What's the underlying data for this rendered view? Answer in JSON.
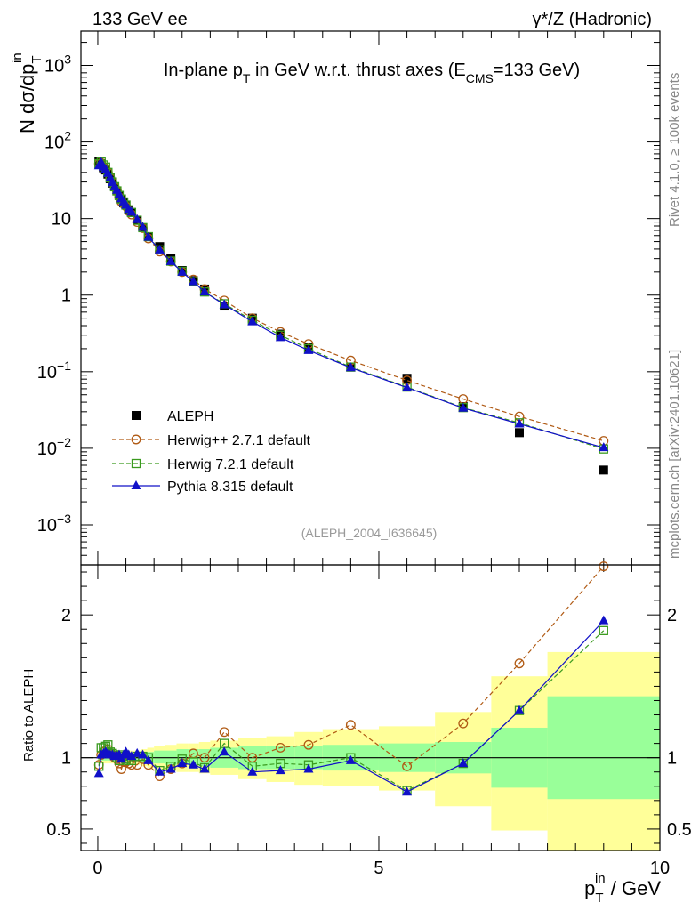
{
  "header": {
    "left_label": "133 GeV ee",
    "right_label": "γ*/Z (Hadronic)"
  },
  "side": {
    "rivet_label": "Rivet 4.1.0, ≥ 100k events",
    "mcplots_label": "mcplots.cern.ch [arXiv:2401.10621]"
  },
  "chart_data": [
    {
      "type": "line",
      "yscale": "log",
      "title": "In-plane p_T in GeV w.r.t. thrust axes (E_CMS=133 GeV)",
      "title_parts": {
        "a": "In-plane p",
        "sub1": "T",
        "b": " in GeV w.r.t. thrust axes (E",
        "sub2": "CMS",
        "c": "=133 GeV)"
      },
      "ylabel": {
        "main": "N  dσ/dp",
        "sub": "T",
        "sup": "in"
      },
      "xlim": [
        -0.3,
        10
      ],
      "ylim": [
        0.0003,
        2800
      ],
      "y_ticks": [
        {
          "v": 0.001,
          "base": "10",
          "exp": "−3"
        },
        {
          "v": 0.01,
          "base": "10",
          "exp": "−2"
        },
        {
          "v": 0.1,
          "base": "10",
          "exp": "−1"
        },
        {
          "v": 1,
          "label": "1"
        },
        {
          "v": 10,
          "label": "10"
        },
        {
          "v": 100,
          "base": "10",
          "exp": "2"
        },
        {
          "v": 1000,
          "base": "10",
          "exp": "3"
        }
      ],
      "watermark": "(ALEPH_2004_I636645)",
      "legend_position": "bottom-left",
      "series": [
        {
          "name": "ALEPH",
          "key": "aleph",
          "color": "#000000",
          "marker": "square",
          "x": [
            0.02,
            0.06,
            0.1,
            0.14,
            0.18,
            0.22,
            0.26,
            0.3,
            0.34,
            0.38,
            0.42,
            0.46,
            0.5,
            0.55,
            0.6,
            0.7,
            0.8,
            0.9,
            1.1,
            1.3,
            1.5,
            1.7,
            1.9,
            2.25,
            2.75,
            3.25,
            3.75,
            4.5,
            5.5,
            6.5,
            7.5,
            9.0
          ],
          "y": [
            55,
            52,
            46,
            43,
            38,
            33,
            29,
            26,
            23,
            20,
            18,
            16,
            15,
            13,
            12,
            9.5,
            7.6,
            5.8,
            4.3,
            3.0,
            2.1,
            1.55,
            1.2,
            0.72,
            0.5,
            0.31,
            0.21,
            0.115,
            0.082,
            0.035,
            0.016,
            0.0052
          ]
        },
        {
          "name": "Herwig++ 2.7.1 default",
          "key": "herwigpp",
          "color": "#b05a14",
          "marker": "circle",
          "x": [
            0.02,
            0.06,
            0.1,
            0.14,
            0.18,
            0.22,
            0.26,
            0.3,
            0.34,
            0.38,
            0.42,
            0.46,
            0.5,
            0.55,
            0.6,
            0.7,
            0.8,
            0.9,
            1.1,
            1.3,
            1.5,
            1.7,
            1.9,
            2.25,
            2.75,
            3.25,
            3.75,
            4.5,
            5.5,
            6.5,
            7.5,
            9.0
          ],
          "y": [
            52,
            53,
            48,
            45,
            40,
            34,
            30,
            26,
            23,
            19,
            16.5,
            15.5,
            14.5,
            12.5,
            11.3,
            9.0,
            7.5,
            5.5,
            3.7,
            2.75,
            2.0,
            1.6,
            1.2,
            0.85,
            0.5,
            0.33,
            0.23,
            0.14,
            0.077,
            0.044,
            0.026,
            0.0125
          ]
        },
        {
          "name": "Herwig 7.2.1 default",
          "key": "herwig7",
          "color": "#3a9a1e",
          "marker": "open-square",
          "x": [
            0.02,
            0.06,
            0.1,
            0.14,
            0.18,
            0.22,
            0.26,
            0.3,
            0.34,
            0.38,
            0.42,
            0.46,
            0.5,
            0.55,
            0.6,
            0.7,
            0.8,
            0.9,
            1.1,
            1.3,
            1.5,
            1.7,
            1.9,
            2.25,
            2.75,
            3.25,
            3.75,
            4.5,
            5.5,
            6.5,
            7.5,
            9.0
          ],
          "y": [
            52,
            55,
            50,
            47,
            40,
            34,
            30,
            26,
            23,
            20,
            18,
            16.5,
            15,
            13,
            12,
            9.5,
            7.6,
            5.8,
            3.9,
            2.78,
            2.05,
            1.5,
            1.1,
            0.77,
            0.47,
            0.3,
            0.2,
            0.115,
            0.063,
            0.034,
            0.0215,
            0.0098
          ]
        },
        {
          "name": "Pythia 8.315 default",
          "key": "pythia",
          "color": "#1010c8",
          "marker": "triangle",
          "x": [
            0.02,
            0.06,
            0.1,
            0.14,
            0.18,
            0.22,
            0.26,
            0.3,
            0.34,
            0.38,
            0.42,
            0.46,
            0.5,
            0.55,
            0.6,
            0.7,
            0.8,
            0.9,
            1.1,
            1.3,
            1.5,
            1.7,
            1.9,
            2.25,
            2.75,
            3.25,
            3.75,
            4.5,
            5.5,
            6.5,
            7.5,
            9.0
          ],
          "y": [
            49,
            54,
            47,
            44,
            39,
            34,
            29.5,
            26,
            23.5,
            20.5,
            18.2,
            16.5,
            15,
            13.2,
            12.2,
            9.7,
            7.7,
            5.7,
            3.9,
            2.75,
            2.0,
            1.5,
            1.1,
            0.75,
            0.45,
            0.28,
            0.19,
            0.113,
            0.062,
            0.0335,
            0.0208,
            0.0102
          ]
        }
      ]
    },
    {
      "type": "line",
      "ylabel": "Ratio to ALEPH",
      "xlabel": {
        "main": "p",
        "sub": "T",
        "sup": "in",
        "unit": " / GeV"
      },
      "xlim": [
        -0.3,
        10
      ],
      "ylim": [
        0.35,
        2.35
      ],
      "x_ticks": [
        {
          "v": 0,
          "label": "0"
        },
        {
          "v": 5,
          "label": "5"
        },
        {
          "v": 10,
          "label": "10"
        }
      ],
      "y_ticks": [
        {
          "v": 0.5,
          "label": "0.5"
        },
        {
          "v": 1,
          "label": "1"
        },
        {
          "v": 2,
          "label": "2"
        }
      ],
      "reference_line": 1,
      "band_colors": {
        "outer": "#ffff99",
        "inner": "#99ff99"
      },
      "bands": [
        {
          "x0": 0.0,
          "x1": 0.04,
          "inner": [
            0.98,
            1.02
          ],
          "outer": [
            0.96,
            1.04
          ]
        },
        {
          "x0": 0.04,
          "x1": 0.08,
          "inner": [
            0.98,
            1.02
          ],
          "outer": [
            0.96,
            1.04
          ]
        },
        {
          "x0": 0.08,
          "x1": 0.12,
          "inner": [
            0.98,
            1.02
          ],
          "outer": [
            0.96,
            1.04
          ]
        },
        {
          "x0": 0.12,
          "x1": 0.16,
          "inner": [
            0.98,
            1.02
          ],
          "outer": [
            0.96,
            1.04
          ]
        },
        {
          "x0": 0.16,
          "x1": 0.2,
          "inner": [
            0.98,
            1.02
          ],
          "outer": [
            0.96,
            1.04
          ]
        },
        {
          "x0": 0.2,
          "x1": 0.24,
          "inner": [
            0.98,
            1.02
          ],
          "outer": [
            0.96,
            1.04
          ]
        },
        {
          "x0": 0.24,
          "x1": 0.28,
          "inner": [
            0.98,
            1.02
          ],
          "outer": [
            0.96,
            1.04
          ]
        },
        {
          "x0": 0.28,
          "x1": 0.32,
          "inner": [
            0.98,
            1.02
          ],
          "outer": [
            0.96,
            1.04
          ]
        },
        {
          "x0": 0.32,
          "x1": 0.36,
          "inner": [
            0.98,
            1.02
          ],
          "outer": [
            0.96,
            1.04
          ]
        },
        {
          "x0": 0.36,
          "x1": 0.4,
          "inner": [
            0.98,
            1.02
          ],
          "outer": [
            0.96,
            1.04
          ]
        },
        {
          "x0": 0.4,
          "x1": 0.44,
          "inner": [
            0.98,
            1.02
          ],
          "outer": [
            0.96,
            1.04
          ]
        },
        {
          "x0": 0.44,
          "x1": 0.48,
          "inner": [
            0.98,
            1.02
          ],
          "outer": [
            0.96,
            1.04
          ]
        },
        {
          "x0": 0.48,
          "x1": 0.52,
          "inner": [
            0.98,
            1.02
          ],
          "outer": [
            0.96,
            1.04
          ]
        },
        {
          "x0": 0.52,
          "x1": 0.58,
          "inner": [
            0.97,
            1.03
          ],
          "outer": [
            0.95,
            1.05
          ]
        },
        {
          "x0": 0.58,
          "x1": 0.64,
          "inner": [
            0.97,
            1.03
          ],
          "outer": [
            0.95,
            1.05
          ]
        },
        {
          "x0": 0.64,
          "x1": 0.76,
          "inner": [
            0.97,
            1.03
          ],
          "outer": [
            0.95,
            1.05
          ]
        },
        {
          "x0": 0.76,
          "x1": 0.88,
          "inner": [
            0.96,
            1.04
          ],
          "outer": [
            0.94,
            1.06
          ]
        },
        {
          "x0": 0.88,
          "x1": 1.0,
          "inner": [
            0.96,
            1.04
          ],
          "outer": [
            0.93,
            1.07
          ]
        },
        {
          "x0": 1.0,
          "x1": 1.2,
          "inner": [
            0.96,
            1.05
          ],
          "outer": [
            0.92,
            1.08
          ]
        },
        {
          "x0": 1.2,
          "x1": 1.4,
          "inner": [
            0.95,
            1.05
          ],
          "outer": [
            0.91,
            1.09
          ]
        },
        {
          "x0": 1.4,
          "x1": 1.6,
          "inner": [
            0.95,
            1.06
          ],
          "outer": [
            0.9,
            1.1
          ]
        },
        {
          "x0": 1.6,
          "x1": 1.8,
          "inner": [
            0.95,
            1.06
          ],
          "outer": [
            0.9,
            1.1
          ]
        },
        {
          "x0": 1.8,
          "x1": 2.0,
          "inner": [
            0.94,
            1.06
          ],
          "outer": [
            0.89,
            1.11
          ]
        },
        {
          "x0": 2.0,
          "x1": 2.5,
          "inner": [
            0.93,
            1.07
          ],
          "outer": [
            0.88,
            1.12
          ]
        },
        {
          "x0": 2.5,
          "x1": 3.0,
          "inner": [
            0.92,
            1.08
          ],
          "outer": [
            0.85,
            1.14
          ]
        },
        {
          "x0": 3.0,
          "x1": 3.5,
          "inner": [
            0.92,
            1.08
          ],
          "outer": [
            0.83,
            1.15
          ]
        },
        {
          "x0": 3.5,
          "x1": 4.0,
          "inner": [
            0.92,
            1.08
          ],
          "outer": [
            0.81,
            1.18
          ]
        },
        {
          "x0": 4.0,
          "x1": 5.0,
          "inner": [
            0.91,
            1.09
          ],
          "outer": [
            0.8,
            1.2
          ]
        },
        {
          "x0": 5.0,
          "x1": 6.0,
          "inner": [
            0.9,
            1.1
          ],
          "outer": [
            0.77,
            1.22
          ]
        },
        {
          "x0": 6.0,
          "x1": 7.0,
          "inner": [
            0.89,
            1.11
          ],
          "outer": [
            0.66,
            1.32
          ]
        },
        {
          "x0": 7.0,
          "x1": 8.0,
          "inner": [
            0.79,
            1.21
          ],
          "outer": [
            0.49,
            1.57
          ]
        },
        {
          "x0": 8.0,
          "x1": 10.0,
          "inner": [
            0.71,
            1.43
          ],
          "outer": [
            0.35,
            1.74
          ]
        }
      ],
      "series": [
        {
          "name": "Herwig++ 2.7.1 default",
          "key": "herwigpp",
          "color": "#b05a14",
          "marker": "circle",
          "x": [
            0.02,
            0.06,
            0.1,
            0.14,
            0.18,
            0.22,
            0.26,
            0.3,
            0.34,
            0.38,
            0.42,
            0.46,
            0.5,
            0.55,
            0.6,
            0.7,
            0.8,
            0.9,
            1.1,
            1.3,
            1.5,
            1.7,
            1.9,
            2.25,
            2.75,
            3.25,
            3.75,
            4.5,
            5.5,
            6.5,
            7.5,
            9.0
          ],
          "y": [
            0.95,
            1.02,
            1.04,
            1.05,
            1.06,
            1.03,
            1.02,
            1.0,
            0.99,
            0.96,
            0.92,
            0.97,
            0.97,
            0.96,
            0.95,
            0.95,
            0.99,
            0.95,
            0.87,
            0.92,
            0.96,
            1.03,
            1.0,
            1.18,
            1.0,
            1.07,
            1.09,
            1.23,
            0.94,
            1.24,
            1.66,
            2.34
          ]
        },
        {
          "name": "Herwig 7.2.1 default",
          "key": "herwig7",
          "color": "#3a9a1e",
          "marker": "open-square",
          "x": [
            0.02,
            0.06,
            0.1,
            0.14,
            0.18,
            0.22,
            0.26,
            0.3,
            0.34,
            0.38,
            0.42,
            0.46,
            0.5,
            0.55,
            0.6,
            0.7,
            0.8,
            0.9,
            1.1,
            1.3,
            1.5,
            1.7,
            1.9,
            2.25,
            2.75,
            3.25,
            3.75,
            4.5,
            5.5,
            6.5,
            7.5,
            9.0
          ],
          "y": [
            0.94,
            1.07,
            1.07,
            1.08,
            1.09,
            1.04,
            1.03,
            1.02,
            1.0,
            0.98,
            1.02,
            1.01,
            0.99,
            0.98,
            0.98,
            1.01,
            1.01,
            1.0,
            0.91,
            0.94,
            0.99,
            0.97,
            0.93,
            1.1,
            0.94,
            0.96,
            0.95,
            1.0,
            0.77,
            0.96,
            1.33,
            1.89
          ]
        },
        {
          "name": "Pythia 8.315 default",
          "key": "pythia",
          "color": "#1010c8",
          "marker": "triangle",
          "x": [
            0.02,
            0.06,
            0.1,
            0.14,
            0.18,
            0.22,
            0.26,
            0.3,
            0.34,
            0.38,
            0.42,
            0.46,
            0.5,
            0.55,
            0.6,
            0.7,
            0.8,
            0.9,
            1.1,
            1.3,
            1.5,
            1.7,
            1.9,
            2.25,
            2.75,
            3.25,
            3.75,
            4.5,
            5.5,
            6.5,
            7.5,
            9.0
          ],
          "y": [
            0.89,
            1.02,
            1.03,
            1.04,
            1.03,
            1.02,
            1.02,
            1.01,
            1.01,
            1.02,
            0.99,
            1.02,
            1.04,
            1.02,
            1.01,
            1.03,
            1.02,
            0.98,
            0.9,
            0.92,
            0.96,
            0.95,
            0.92,
            1.04,
            0.9,
            0.91,
            0.92,
            0.98,
            0.76,
            0.96,
            1.33,
            1.96
          ]
        }
      ]
    }
  ]
}
